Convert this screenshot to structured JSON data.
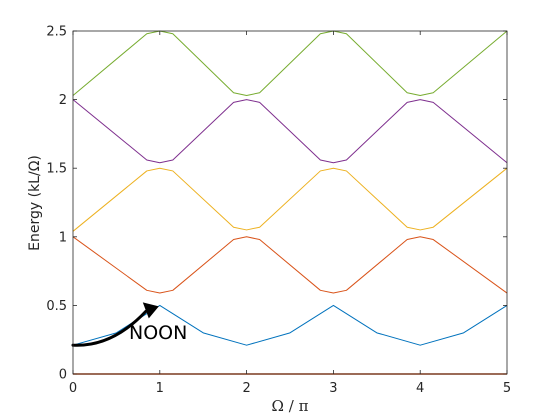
{
  "chart_data": {
    "type": "line",
    "xlabel": "Ω / π",
    "ylabel": "Energy (kL/Ω)",
    "xlim": [
      0,
      5
    ],
    "ylim": [
      0,
      2.5
    ],
    "xticks": [
      "0",
      "1",
      "2",
      "3",
      "4",
      "5"
    ],
    "yticks": [
      "0",
      "0.5",
      "1",
      "1.5",
      "2",
      "2.5"
    ],
    "grid": false,
    "series": [
      {
        "color": "#D95319",
        "x": [
          0,
          1,
          2,
          3,
          4,
          5
        ],
        "values": [
          0,
          0,
          0,
          0,
          0,
          0
        ]
      },
      {
        "color": "#0072BD",
        "x": [
          0,
          0.5,
          1,
          1.5,
          2,
          2.5,
          3,
          3.5,
          4,
          4.5,
          5
        ],
        "values": [
          0.21,
          0.3,
          0.5,
          0.3,
          0.21,
          0.3,
          0.5,
          0.3,
          0.21,
          0.3,
          0.5
        ]
      },
      {
        "color": "#D95319",
        "x": [
          0,
          0.85,
          1,
          1.15,
          1.85,
          2,
          2.15,
          2.85,
          3,
          3.15,
          3.85,
          4,
          4.15,
          5
        ],
        "values": [
          1.0,
          0.61,
          0.59,
          0.61,
          0.98,
          1.0,
          0.98,
          0.61,
          0.59,
          0.61,
          0.98,
          1.0,
          0.98,
          0.59
        ]
      },
      {
        "color": "#EDB120",
        "x": [
          0,
          0.85,
          1,
          1.15,
          1.85,
          2,
          2.15,
          2.85,
          3,
          3.15,
          3.85,
          4,
          4.15,
          5
        ],
        "values": [
          1.04,
          1.48,
          1.5,
          1.48,
          1.07,
          1.05,
          1.07,
          1.48,
          1.5,
          1.48,
          1.07,
          1.05,
          1.07,
          1.5
        ]
      },
      {
        "color": "#7E2F8E",
        "x": [
          0,
          0.85,
          1,
          1.15,
          1.85,
          2,
          2.15,
          2.85,
          3,
          3.15,
          3.85,
          4,
          4.15,
          5
        ],
        "values": [
          2.0,
          1.56,
          1.54,
          1.56,
          1.98,
          2.0,
          1.98,
          1.56,
          1.54,
          1.56,
          1.98,
          2.0,
          1.98,
          1.54
        ]
      },
      {
        "color": "#77AC30",
        "x": [
          0,
          0.85,
          1,
          1.15,
          1.85,
          2,
          2.15,
          2.85,
          3,
          3.15,
          3.85,
          4,
          4.15,
          5
        ],
        "values": [
          2.03,
          2.48,
          2.5,
          2.48,
          2.05,
          2.03,
          2.05,
          2.48,
          2.5,
          2.48,
          2.05,
          2.03,
          2.05,
          2.5
        ]
      }
    ],
    "annotations": [
      {
        "text": "NOON",
        "arrow_from": [
          0,
          0.21
        ],
        "arrow_to": [
          1,
          0.5
        ]
      }
    ]
  }
}
